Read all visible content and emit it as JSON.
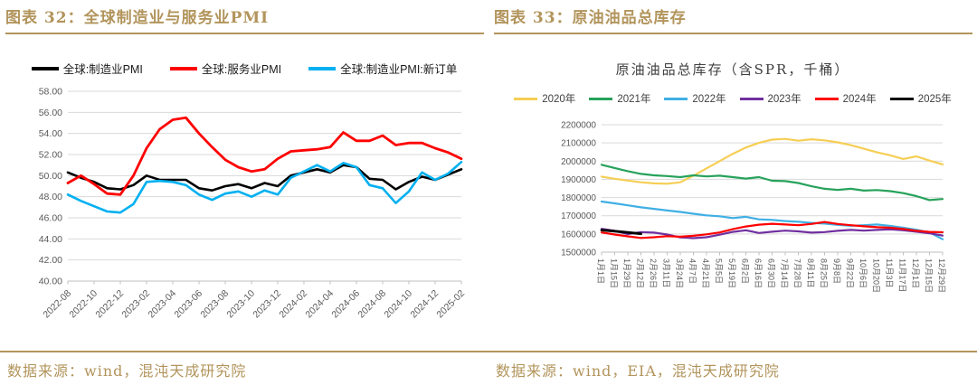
{
  "page": {
    "accent_color": "#B2945B",
    "background": "#ffffff"
  },
  "figures": [
    {
      "caption": "图表 32：全球制造业与服务业PMI",
      "source": "数据来源：wind，混沌天成研究院"
    },
    {
      "caption": "图表 33：原油油品总库存",
      "source": "数据来源：wind，EIA，混沌天成研究院"
    }
  ],
  "chart_data": [
    {
      "type": "line",
      "title": "",
      "legend_position": "top",
      "grid": true,
      "ylim": [
        40,
        58
      ],
      "ytick_labels": [
        "58.00",
        "56.00",
        "54.00",
        "52.00",
        "50.00",
        "48.00",
        "46.00",
        "44.00",
        "42.00",
        "40.00"
      ],
      "categories": [
        "2022-08",
        "2022-09",
        "2022-10",
        "2022-11",
        "2022-12",
        "2023-01",
        "2023-02",
        "2023-03",
        "2023-04",
        "2023-05",
        "2023-06",
        "2023-07",
        "2023-08",
        "2023-09",
        "2023-10",
        "2023-11",
        "2023-12",
        "2024-01",
        "2024-02",
        "2024-03",
        "2024-04",
        "2024-05",
        "2024-06",
        "2024-07",
        "2024-08",
        "2024-09",
        "2024-10",
        "2024-11",
        "2024-12",
        "2025-01",
        "2025-02"
      ],
      "x_label_every": 2,
      "series": [
        {
          "name": "全球:制造业PMI",
          "color": "#000000",
          "stroke_width": 2.6,
          "values": [
            50.3,
            49.8,
            49.4,
            48.8,
            48.7,
            49.1,
            50.0,
            49.6,
            49.6,
            49.6,
            48.8,
            48.6,
            49.0,
            49.2,
            48.8,
            49.3,
            49.0,
            50.0,
            50.3,
            50.6,
            50.3,
            51.0,
            50.8,
            49.7,
            49.6,
            48.7,
            49.4,
            49.9,
            49.6,
            50.1,
            50.6
          ]
        },
        {
          "name": "全球:服务业PMI",
          "color": "#FF0000",
          "stroke_width": 2.8,
          "values": [
            49.3,
            50.0,
            49.2,
            48.3,
            48.2,
            50.0,
            52.6,
            54.4,
            55.3,
            55.5,
            54.0,
            52.7,
            51.5,
            50.8,
            50.4,
            50.6,
            51.6,
            52.3,
            52.4,
            52.5,
            52.7,
            54.1,
            53.3,
            53.3,
            53.8,
            52.9,
            53.1,
            53.1,
            52.6,
            52.2,
            51.6
          ]
        },
        {
          "name": "全球:制造业PMI:新订单",
          "color": "#00B0F0",
          "stroke_width": 2.6,
          "values": [
            48.2,
            47.6,
            47.1,
            46.6,
            46.5,
            47.3,
            49.4,
            49.5,
            49.4,
            49.1,
            48.2,
            47.7,
            48.3,
            48.5,
            48.0,
            48.6,
            48.2,
            49.8,
            50.4,
            51.0,
            50.4,
            51.2,
            50.8,
            49.1,
            48.8,
            47.4,
            48.5,
            50.3,
            49.6,
            50.2,
            51.3
          ]
        }
      ]
    },
    {
      "type": "line",
      "title": "原油油品总库存（含SPR，千桶）",
      "legend_position": "top",
      "grid": true,
      "ylim": [
        1500000,
        2200000
      ],
      "ytick_labels": [
        "2200000",
        "2100000",
        "2000000",
        "1900000",
        "1800000",
        "1700000",
        "1600000",
        "1500000"
      ],
      "categories": [
        "1月1日",
        "1月15日",
        "1月29日",
        "2月12日",
        "2月26日",
        "3月11日",
        "3月24日",
        "4月7日",
        "4月21日",
        "5月5日",
        "5月19日",
        "6月2日",
        "6月16日",
        "6月30日",
        "7月14日",
        "7月28日",
        "8月11日",
        "8月25日",
        "9月8日",
        "9月22日",
        "10月6日",
        "10月20日",
        "11月3日",
        "11月17日",
        "12月1日",
        "12月15日",
        "12月29日"
      ],
      "x_label_every": 1,
      "series": [
        {
          "name": "2020年",
          "color": "#F6CE55",
          "stroke_width": 2.2,
          "values": [
            1915000,
            1903000,
            1893000,
            1884000,
            1878000,
            1876000,
            1884000,
            1920000,
            1960000,
            2000000,
            2040000,
            2075000,
            2100000,
            2118000,
            2122000,
            2112000,
            2120000,
            2114000,
            2103000,
            2088000,
            2068000,
            2048000,
            2032000,
            2012000,
            2026000,
            2003000,
            1982000
          ]
        },
        {
          "name": "2021年",
          "color": "#27A25B",
          "stroke_width": 2.2,
          "values": [
            1980000,
            1962000,
            1945000,
            1930000,
            1922000,
            1918000,
            1912000,
            1922000,
            1916000,
            1920000,
            1912000,
            1904000,
            1912000,
            1892000,
            1890000,
            1880000,
            1862000,
            1848000,
            1842000,
            1848000,
            1838000,
            1841000,
            1835000,
            1824000,
            1808000,
            1786000,
            1792000
          ]
        },
        {
          "name": "2022年",
          "color": "#3FAFE4",
          "stroke_width": 2.2,
          "values": [
            1778000,
            1768000,
            1757000,
            1746000,
            1738000,
            1729000,
            1721000,
            1711000,
            1702000,
            1697000,
            1687000,
            1694000,
            1680000,
            1677000,
            1671000,
            1667000,
            1661000,
            1657000,
            1650000,
            1645000,
            1648000,
            1652000,
            1644000,
            1634000,
            1623000,
            1608000,
            1571000
          ]
        },
        {
          "name": "2023年",
          "color": "#7030A0",
          "stroke_width": 2.2,
          "values": [
            1628000,
            1617000,
            1599000,
            1610000,
            1607000,
            1597000,
            1581000,
            1577000,
            1582000,
            1596000,
            1611000,
            1620000,
            1605000,
            1612000,
            1618000,
            1614000,
            1607000,
            1610000,
            1617000,
            1622000,
            1618000,
            1622000,
            1625000,
            1620000,
            1612000,
            1604000,
            1591000
          ]
        },
        {
          "name": "2024年",
          "color": "#FF0000",
          "stroke_width": 2.2,
          "values": [
            1608000,
            1597000,
            1587000,
            1578000,
            1582000,
            1588000,
            1585000,
            1590000,
            1598000,
            1608000,
            1626000,
            1641000,
            1651000,
            1656000,
            1652000,
            1648000,
            1655000,
            1666000,
            1655000,
            1648000,
            1642000,
            1637000,
            1634000,
            1627000,
            1617000,
            1611000,
            1609000
          ]
        },
        {
          "name": "2025年",
          "color": "#000000",
          "stroke_width": 2.8,
          "values": [
            1621000,
            1615000,
            1608000,
            1601000
          ]
        }
      ]
    }
  ]
}
